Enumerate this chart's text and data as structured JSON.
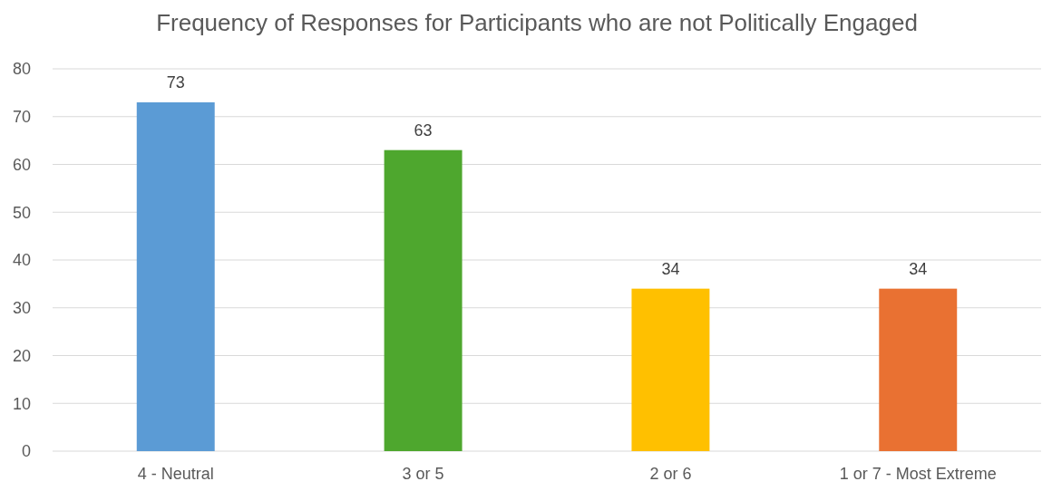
{
  "chart_data": {
    "type": "bar",
    "title": "Frequency of Responses for Participants who are not Politically Engaged",
    "categories": [
      "4 - Neutral",
      "3 or 5",
      "2 or 6",
      "1 or 7 - Most Extreme"
    ],
    "values": [
      73,
      63,
      34,
      34
    ],
    "colors": [
      "#5b9bd5",
      "#4ea72e",
      "#ffc000",
      "#e97132"
    ],
    "ylim": [
      0,
      80
    ],
    "yticks": [
      0,
      10,
      20,
      30,
      40,
      50,
      60,
      70,
      80
    ],
    "grid": "y",
    "data_labels": true
  }
}
